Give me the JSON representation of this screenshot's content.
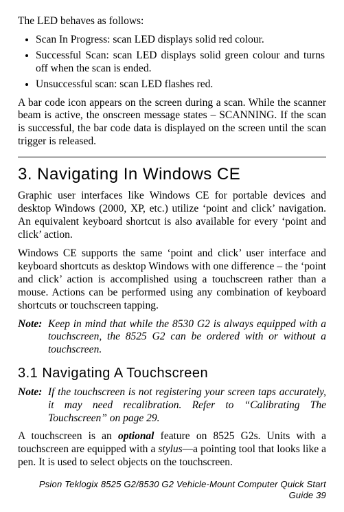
{
  "intro": "The LED behaves as follows:",
  "bullets": [
    "Scan In Progress: scan LED displays solid red colour.",
    "Successful Scan: scan LED displays solid green colour and turns off when the scan is ended.",
    "Unsuccessful scan: scan LED flashes red."
  ],
  "after_bullets": "A bar code icon appears on the screen during a scan. While the scanner beam is active, the onscreen message states – SCANNING. If the scan is successful, the bar code data is displayed on the screen until the scan trigger is released.",
  "section3_heading": "3.   Navigating In Windows CE",
  "section3_p1": "Graphic user interfaces like Windows CE for portable devices and desktop Windows (2000, XP, etc.) utilize ‘point and click’ navigation. An equivalent keyboard shortcut is also available for every ‘point and click’ action.",
  "section3_p2": "Windows CE supports the same ‘point and click’ user interface and keyboard shortcuts as desktop Windows with one difference – the ‘point and click’ action is accomplished using a touchscreen rather than a mouse. Actions can be performed using any combination of keyboard shortcuts or touchscreen tapping.",
  "note1_label": "Note:",
  "note1_body": "Keep in mind that while the 8530 G2 is always equipped with a touchscreen, the 8525 G2 can be ordered with or without a touchscreen.",
  "section31_heading": "3.1   Navigating A Touchscreen",
  "note2_label": "Note:",
  "note2_body": "If the touchscreen is not registering your screen taps accurately, it may need recalibration. Refer to “Calibrating The Touchscreen” on page 29.",
  "final_para_pre": "A touchscreen is an ",
  "final_optional": "optional",
  "final_para_mid": " feature on 8525 G2s. Units with a touchscreen are equipped with a ",
  "final_stylus": "stylus",
  "final_para_post": "—a pointing tool that looks like a pen. It is used to select objects on the touchscreen.",
  "footer": "Psion Teklogix 8525 G2/8530 G2 Vehicle-Mount Computer Quick Start Guide    39"
}
